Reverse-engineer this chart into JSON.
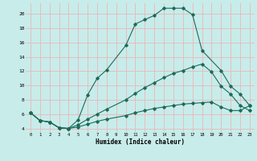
{
  "xlabel": "Humidex (Indice chaleur)",
  "bg_color": "#c8ecea",
  "grid_color": "#e8b8b8",
  "line_color": "#1a6b5a",
  "xlim": [
    -0.5,
    23.5
  ],
  "ylim": [
    3.5,
    21.5
  ],
  "xticks": [
    0,
    1,
    2,
    3,
    4,
    5,
    6,
    7,
    8,
    9,
    10,
    11,
    12,
    13,
    14,
    15,
    16,
    17,
    18,
    19,
    20,
    21,
    22,
    23
  ],
  "yticks": [
    4,
    6,
    8,
    10,
    12,
    14,
    16,
    18,
    20
  ],
  "lines": [
    {
      "x": [
        0,
        1,
        2,
        3,
        4,
        5,
        6,
        7,
        8,
        10,
        11,
        12,
        13,
        14,
        15,
        16,
        17,
        18,
        20,
        21,
        22,
        23
      ],
      "y": [
        6.2,
        5.1,
        4.9,
        4.1,
        4.0,
        5.2,
        8.7,
        11.0,
        12.2,
        15.6,
        18.6,
        19.2,
        19.8,
        20.8,
        20.8,
        20.8,
        19.9,
        14.9,
        12.1,
        9.9,
        8.8,
        7.2
      ]
    },
    {
      "x": [
        0,
        1,
        2,
        3,
        4,
        5,
        6,
        7,
        8,
        10,
        11,
        12,
        13,
        14,
        15,
        16,
        17,
        18,
        19,
        20,
        21,
        22,
        23
      ],
      "y": [
        6.2,
        5.1,
        4.9,
        4.1,
        4.0,
        4.5,
        5.3,
        6.0,
        6.7,
        8.0,
        8.9,
        9.7,
        10.4,
        11.1,
        11.7,
        12.1,
        12.6,
        13.0,
        11.9,
        9.9,
        8.8,
        7.2,
        6.5
      ]
    },
    {
      "x": [
        0,
        1,
        2,
        3,
        4,
        5,
        6,
        7,
        8,
        10,
        11,
        12,
        13,
        14,
        15,
        16,
        17,
        18,
        19,
        20,
        21,
        22,
        23
      ],
      "y": [
        6.2,
        5.1,
        4.9,
        4.1,
        4.0,
        4.2,
        4.6,
        5.0,
        5.3,
        5.8,
        6.2,
        6.5,
        6.8,
        7.0,
        7.2,
        7.4,
        7.5,
        7.6,
        7.7,
        7.0,
        6.5,
        6.5,
        7.2
      ]
    }
  ]
}
